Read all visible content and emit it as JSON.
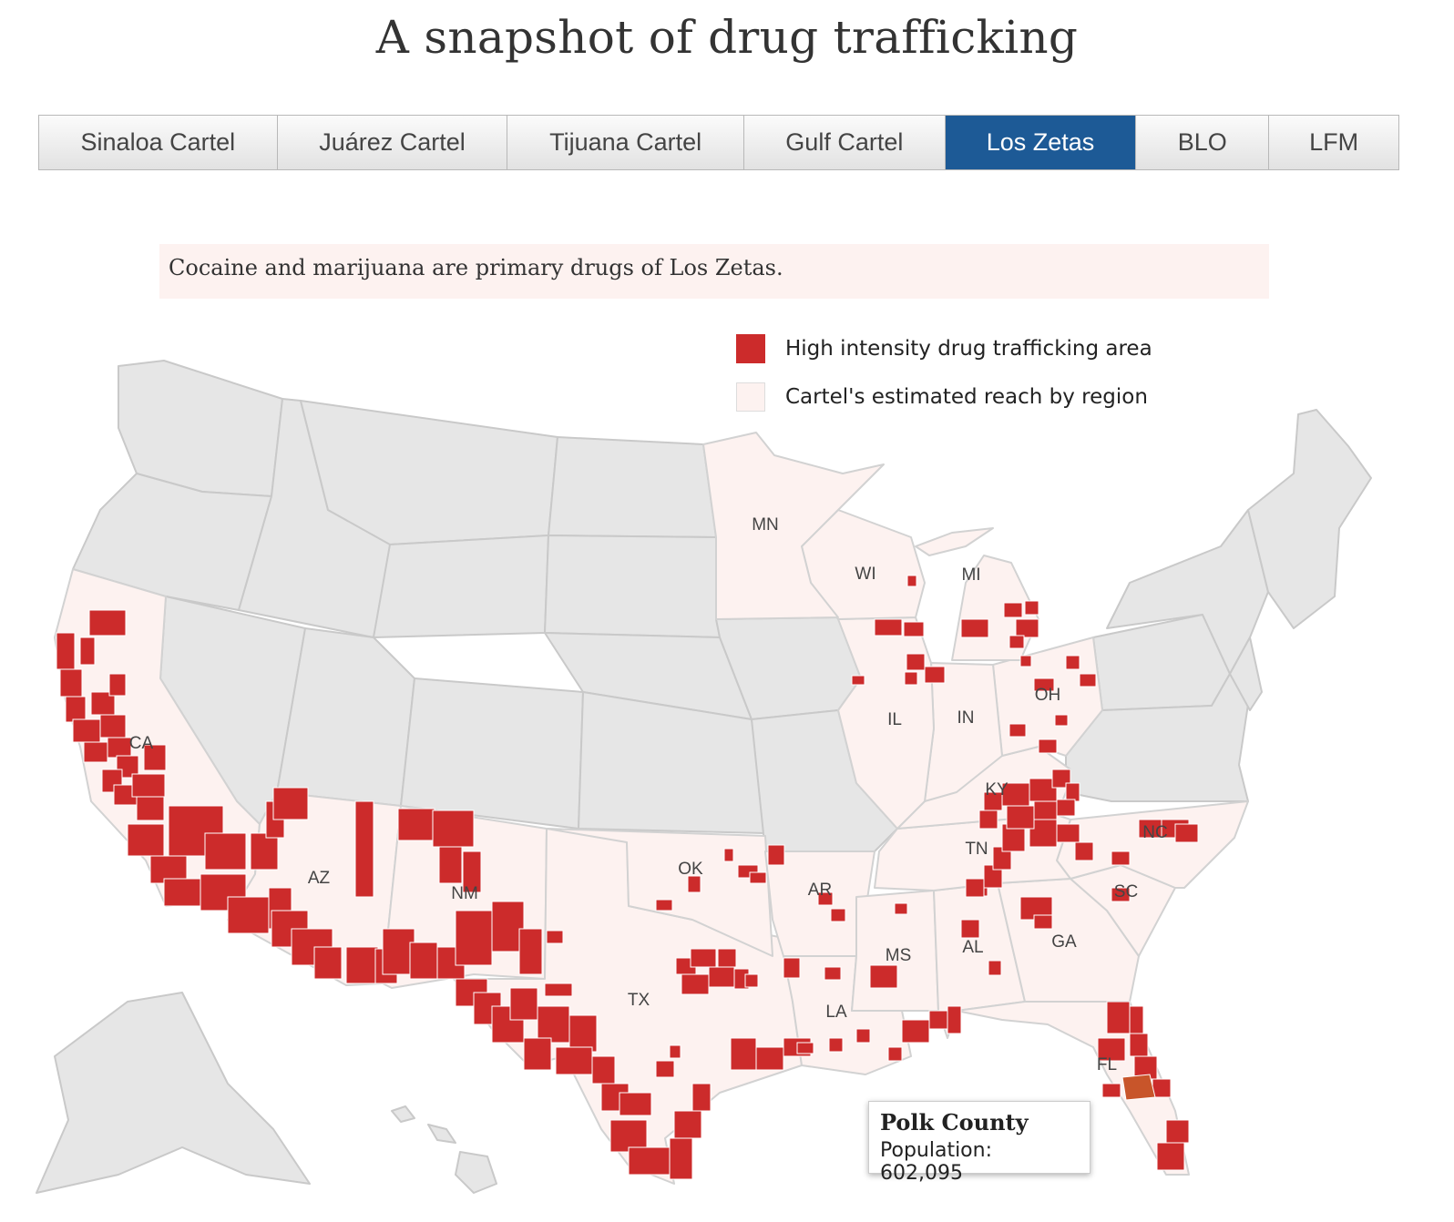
{
  "page_title": "A snapshot of drug trafficking",
  "tabs": [
    {
      "label": "Sinaloa Cartel",
      "active": false
    },
    {
      "label": "Juárez Cartel",
      "active": false
    },
    {
      "label": "Tijuana Cartel",
      "active": false
    },
    {
      "label": "Gulf Cartel",
      "active": false
    },
    {
      "label": "Los Zetas",
      "active": true
    },
    {
      "label": "BLO",
      "active": false
    },
    {
      "label": "LFM",
      "active": false
    }
  ],
  "description": "Cocaine and marijuana are primary drugs of Los Zetas.",
  "legend": [
    {
      "label": "High intensity drug trafficking area",
      "color": "#cc2b2b"
    },
    {
      "label": "Cartel's estimated reach by region",
      "color": "#fdf2f0"
    }
  ],
  "colors": {
    "high_intensity": "#cc2b2b",
    "reach": "#fdf2f0",
    "outside_reach": "#e6e6e6",
    "highlight": "#c8552a",
    "active_tab": "#1d5a96"
  },
  "states_in_reach": [
    "CA",
    "AZ",
    "NM",
    "TX",
    "OK",
    "AR",
    "LA",
    "MS",
    "AL",
    "GA",
    "FL",
    "SC",
    "NC",
    "TN",
    "KY",
    "OH",
    "IN",
    "IL",
    "MI",
    "WI",
    "MN"
  ],
  "state_labels": [
    "MN",
    "WI",
    "MI",
    "IL",
    "IN",
    "OH",
    "KY",
    "CA",
    "AZ",
    "NM",
    "OK",
    "AR",
    "TN",
    "NC",
    "SC",
    "GA",
    "AL",
    "MS",
    "LA",
    "TX",
    "FL"
  ],
  "tooltip": {
    "title": "Polk County",
    "text": "Population: 602,095"
  }
}
